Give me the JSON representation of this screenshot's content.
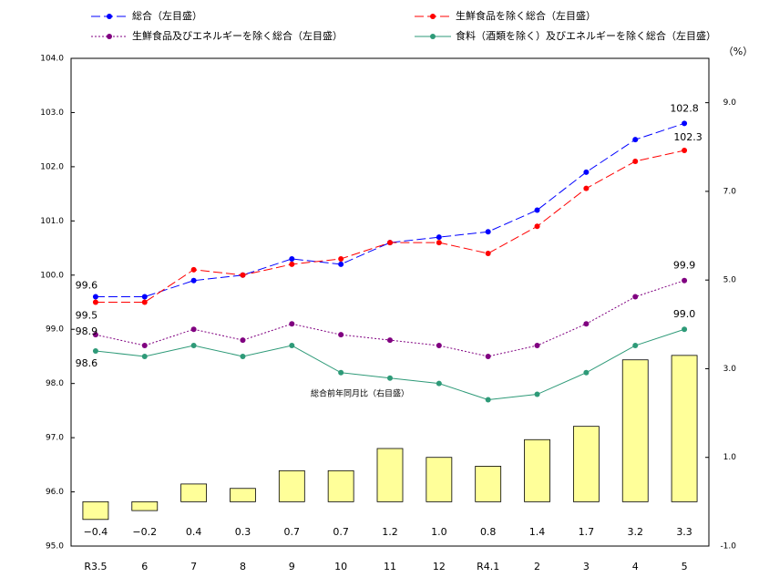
{
  "chart_data": {
    "type": "line",
    "categories": [
      "R3.5",
      "6",
      "7",
      "8",
      "9",
      "10",
      "11",
      "12",
      "R4.1",
      "2",
      "3",
      "4",
      "5"
    ],
    "series": [
      {
        "name": "総合（左目盛）",
        "color": "#0000ff",
        "style": "dashed",
        "values": [
          99.6,
          99.6,
          99.9,
          100.0,
          100.3,
          100.2,
          100.6,
          100.7,
          100.8,
          101.2,
          101.9,
          102.5,
          102.8
        ],
        "value_labels": [
          "99.6",
          null,
          null,
          null,
          null,
          null,
          null,
          null,
          null,
          null,
          null,
          null,
          "102.8"
        ]
      },
      {
        "name": "生鮮食品を除く総合（左目盛）",
        "color": "#ff0000",
        "style": "dashed",
        "values": [
          99.5,
          99.5,
          100.1,
          100.0,
          100.2,
          100.3,
          100.6,
          100.6,
          100.4,
          100.9,
          101.6,
          102.1,
          102.3
        ],
        "value_labels": [
          "99.5",
          null,
          null,
          null,
          null,
          null,
          null,
          null,
          null,
          null,
          null,
          null,
          "102.3"
        ]
      },
      {
        "name": "生鮮食品及びエネルギーを除く総合（左目盛）",
        "color": "#800080",
        "style": "dotted",
        "values": [
          98.9,
          98.7,
          99.0,
          98.8,
          99.1,
          98.9,
          98.8,
          98.7,
          98.5,
          98.7,
          99.1,
          99.6,
          99.9
        ],
        "value_labels": [
          "98.9",
          null,
          null,
          null,
          null,
          null,
          null,
          null,
          null,
          null,
          null,
          null,
          "99.9"
        ]
      },
      {
        "name": "食料（酒類を除く）及びエネルギーを除く総合（左目盛）",
        "color": "#2e9a78",
        "style": "solid",
        "values": [
          98.6,
          98.5,
          98.7,
          98.5,
          98.7,
          98.2,
          98.1,
          98.0,
          97.7,
          97.8,
          98.2,
          98.7,
          99.0
        ],
        "value_labels": [
          "98.6",
          null,
          null,
          null,
          null,
          null,
          null,
          null,
          null,
          null,
          null,
          null,
          "99.0"
        ]
      }
    ],
    "bars": {
      "axis": "y2",
      "color": "#ffff99",
      "values": [
        -0.4,
        -0.2,
        0.4,
        0.3,
        0.7,
        0.7,
        1.2,
        1.0,
        0.8,
        1.4,
        1.7,
        3.2,
        3.3
      ],
      "value_labels": [
        "−0.4",
        "−0.2",
        "0.4",
        "0.3",
        "0.7",
        "0.7",
        "1.2",
        "1.0",
        "0.8",
        "1.4",
        "1.7",
        "3.2",
        "3.3"
      ]
    },
    "annotation": "総合前年同月比（右目盛）",
    "y2_label": "（%）",
    "ylim": [
      95,
      104
    ],
    "yticks": [
      {
        "value": 95,
        "label": "95.0"
      },
      {
        "value": 96,
        "label": "96.0"
      },
      {
        "value": 97,
        "label": "97.0"
      },
      {
        "value": 98,
        "label": "98.0"
      },
      {
        "value": 99,
        "label": "99.0"
      },
      {
        "value": 100,
        "label": "100.0"
      },
      {
        "value": 101,
        "label": "101.0"
      },
      {
        "value": 102,
        "label": "102.0"
      },
      {
        "value": 103,
        "label": "103.0"
      },
      {
        "value": 104,
        "label": "104.0"
      }
    ],
    "y2lim": [
      -1,
      10
    ],
    "y2ticks": [
      {
        "value": -1,
        "label": "-1.0"
      },
      {
        "value": 1,
        "label": "1.0"
      },
      {
        "value": 3,
        "label": "3.0"
      },
      {
        "value": 5,
        "label": "5.0"
      },
      {
        "value": 7,
        "label": "7.0"
      },
      {
        "value": 9,
        "label": "9.0"
      }
    ]
  }
}
